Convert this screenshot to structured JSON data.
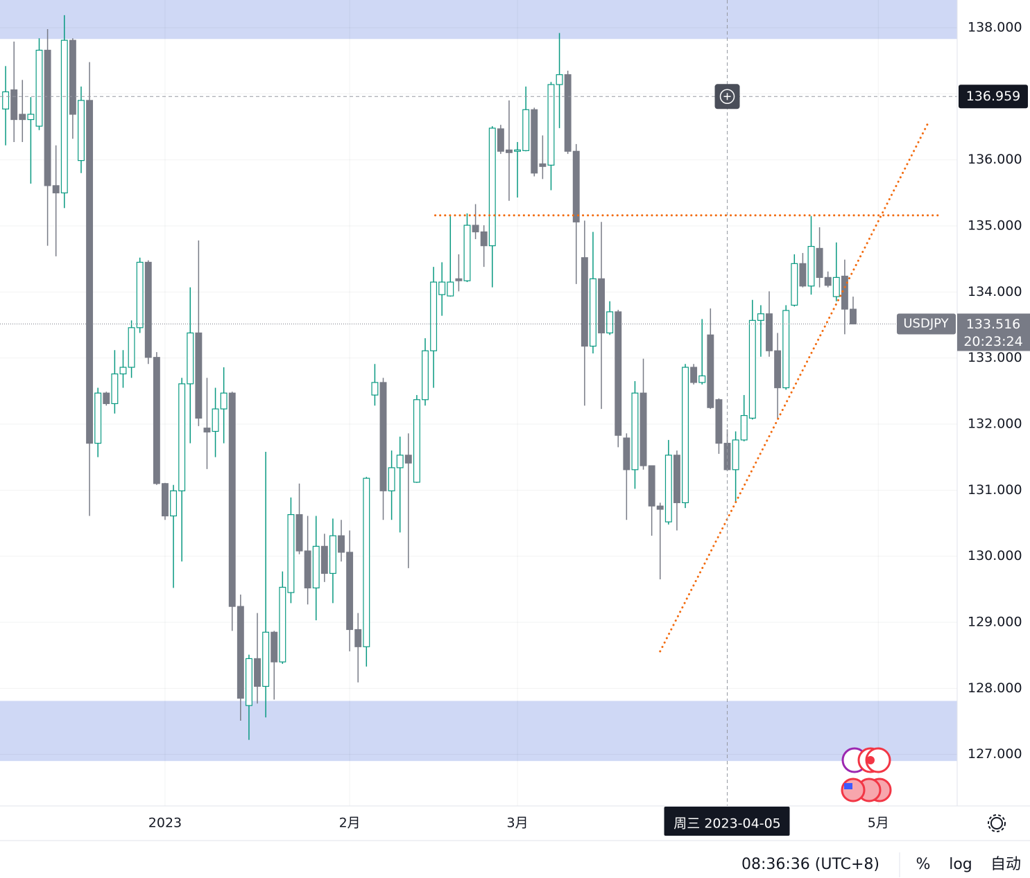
{
  "chart_data": {
    "type": "candlestick",
    "symbol": "USDJPY",
    "xlim": [
      -0.67,
      113.4
    ],
    "ylim": [
      126.22,
      138.42
    ],
    "yticks": [
      {
        "value": 127,
        "label": "127.000"
      },
      {
        "value": 128,
        "label": "128.000"
      },
      {
        "value": 129,
        "label": "129.000"
      },
      {
        "value": 130,
        "label": "130.000"
      },
      {
        "value": 131,
        "label": "131.000"
      },
      {
        "value": 132,
        "label": "132.000"
      },
      {
        "value": 133,
        "label": "133.000"
      },
      {
        "value": 134,
        "label": "134.000"
      },
      {
        "value": 135,
        "label": "135.000"
      },
      {
        "value": 136,
        "label": "136.000"
      },
      {
        "value": 137,
        "label": "137.000"
      },
      {
        "value": 138,
        "label": "138.000"
      }
    ],
    "xticks": [
      {
        "value": 19,
        "label": "2023"
      },
      {
        "value": 41,
        "label": "2月"
      },
      {
        "value": 61,
        "label": "3月"
      },
      {
        "value": 104,
        "label": "5月"
      }
    ],
    "grid": true,
    "up_color": "#089981",
    "down_color": "#787b86",
    "open": [
      136.77,
      137.06,
      136.69,
      136.61,
      136.51,
      137.66,
      135.61,
      135.5,
      137.81,
      135.99,
      136.9,
      131.71,
      132.47,
      132.31,
      132.76,
      132.86,
      133.46,
      134.45,
      133.01,
      131.1,
      130.61,
      130.99,
      132.61,
      133.38,
      131.94,
      131.89,
      132.23,
      132.47,
      129.24,
      127.74,
      128.45,
      128.03,
      128.85,
      128.4,
      129.45,
      130.63,
      130.08,
      129.52,
      130.15,
      129.74,
      130.31,
      130.06,
      128.89,
      128.63,
      132.44,
      132.63,
      130.99,
      131.34,
      131.53,
      131.12,
      132.37,
      133.11,
      133.96,
      133.94,
      134.2,
      134.17,
      135.01,
      134.91,
      134.7,
      136.47,
      136.15,
      136.13,
      136.14,
      136.76,
      135.94,
      135.92,
      137.14,
      137.29,
      136.13,
      134.52,
      133.18,
      134.2,
      133.38,
      133.7,
      131.79,
      131.31,
      132.47,
      131.37,
      130.76,
      130.52,
      131.53,
      130.81,
      132.86,
      132.63,
      133.35,
      132.37,
      131.71,
      131.31,
      131.76,
      132.09,
      133.57,
      133.67,
      133.11,
      132.55,
      133.8,
      134.43,
      134.09,
      134.66,
      134.22,
      133.93,
      134.24,
      133.74
    ],
    "high": [
      137.42,
      137.79,
      137.21,
      136.95,
      137.84,
      137.98,
      136.22,
      138.19,
      137.84,
      137.11,
      137.48,
      132.55,
      132.49,
      133.12,
      133.12,
      133.57,
      134.52,
      134.48,
      133.09,
      131.11,
      131.08,
      132.7,
      134.07,
      134.78,
      132.7,
      132.55,
      132.86,
      132.49,
      129.42,
      128.51,
      129.14,
      131.58,
      128.87,
      129.77,
      130.89,
      131.1,
      130.61,
      130.61,
      130.34,
      130.57,
      130.55,
      130.39,
      129.14,
      131.2,
      132.91,
      132.7,
      131.6,
      131.81,
      131.86,
      132.44,
      133.3,
      134.38,
      134.45,
      135.15,
      134.57,
      135.19,
      135.33,
      135.01,
      136.51,
      136.53,
      136.9,
      136.27,
      137.11,
      136.79,
      136.37,
      137.18,
      137.92,
      137.35,
      136.24,
      135.08,
      134.91,
      135.06,
      133.86,
      133.73,
      131.86,
      132.65,
      132.99,
      131.37,
      130.81,
      131.76,
      131.6,
      132.91,
      132.91,
      133.59,
      133.75,
      132.39,
      131.92,
      131.89,
      132.44,
      133.88,
      133.8,
      134.01,
      133.38,
      133.8,
      134.57,
      134.59,
      135.15,
      134.98,
      134.31,
      134.75,
      134.49,
      133.93
    ],
    "low": [
      136.22,
      136.27,
      136.27,
      135.64,
      136.45,
      134.7,
      134.54,
      135.27,
      136.32,
      135.8,
      130.61,
      131.5,
      132.28,
      132.16,
      132.55,
      132.7,
      133.38,
      132.91,
      131.08,
      130.55,
      129.52,
      129.92,
      131.71,
      131.97,
      131.32,
      131.5,
      131.71,
      128.87,
      127.51,
      127.22,
      127.77,
      127.56,
      127.83,
      128.37,
      129.29,
      130.03,
      129.27,
      129.03,
      129.61,
      129.29,
      129.92,
      128.56,
      128.09,
      128.33,
      132.28,
      130.55,
      130.55,
      130.36,
      129.82,
      131.11,
      132.28,
      132.55,
      133.64,
      133.93,
      134.01,
      134.15,
      134.8,
      134.38,
      134.07,
      136.09,
      135.38,
      135.43,
      136.13,
      135.75,
      135.71,
      135.54,
      136.48,
      136.09,
      134.12,
      132.28,
      133.07,
      132.23,
      133.35,
      131.65,
      130.55,
      131.02,
      131.31,
      130.31,
      129.65,
      130.48,
      130.39,
      130.73,
      132.6,
      132.6,
      132.23,
      131.55,
      131.29,
      130.81,
      131.74,
      132.07,
      133.02,
      133.02,
      132.07,
      132.52,
      133.78,
      134.07,
      133.96,
      134.07,
      134.07,
      133.86,
      133.36,
      133.51
    ],
    "close": [
      137.03,
      136.61,
      136.61,
      136.69,
      137.66,
      135.61,
      135.5,
      137.81,
      136.69,
      136.9,
      131.71,
      132.47,
      132.31,
      132.76,
      132.86,
      133.46,
      134.45,
      133.01,
      131.1,
      130.61,
      130.99,
      132.61,
      133.38,
      132.09,
      131.88,
      132.23,
      132.47,
      129.24,
      127.85,
      128.45,
      128.03,
      128.85,
      128.4,
      129.53,
      130.63,
      130.08,
      129.52,
      130.15,
      129.74,
      130.31,
      130.06,
      128.89,
      128.63,
      131.18,
      132.63,
      130.99,
      131.34,
      131.53,
      131.41,
      132.37,
      133.11,
      134.15,
      134.15,
      134.15,
      134.17,
      135.01,
      134.91,
      134.7,
      136.48,
      136.13,
      136.11,
      136.15,
      136.76,
      135.8,
      135.9,
      137.14,
      137.29,
      136.13,
      135.06,
      133.18,
      134.2,
      133.38,
      133.7,
      131.83,
      131.31,
      132.47,
      131.37,
      130.76,
      130.71,
      131.53,
      130.81,
      132.86,
      132.63,
      132.73,
      132.25,
      131.71,
      131.31,
      131.76,
      132.13,
      133.57,
      133.67,
      133.11,
      132.55,
      133.72,
      134.43,
      134.09,
      134.69,
      134.22,
      134.1,
      134.22,
      133.74,
      133.516
    ],
    "zones": [
      {
        "from": 137.83,
        "to": 138.42,
        "color": "#cfd8f5"
      },
      {
        "from": 126.9,
        "to": 127.81,
        "color": "#cfd8f5"
      }
    ],
    "lines": [
      {
        "x": [
          51.2,
          111.1
        ],
        "y": [
          135.16,
          135.16
        ],
        "color": "#f26b0f"
      },
      {
        "x": [
          78.0,
          109.9
        ],
        "y": [
          128.56,
          136.55
        ],
        "color": "#f26b0f"
      }
    ],
    "last_price": {
      "value": 133.516,
      "countdown": "20:23:24"
    },
    "crosshair": {
      "x": 86,
      "y": 136.959,
      "x_label": "周三 2023-04-05"
    }
  },
  "footer": {
    "time": "08:36:36 (UTC+8)",
    "buttons": [
      "%",
      "log",
      "自动"
    ]
  }
}
